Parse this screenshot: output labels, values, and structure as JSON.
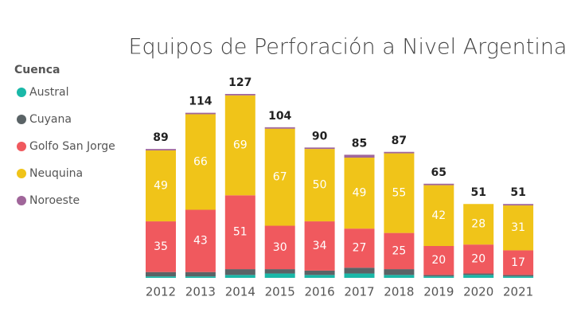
{
  "chart_data": {
    "type": "stacked-bar",
    "title": "Equipos de Perforación a Nivel Argentina",
    "legend_title": "Cuenca",
    "categories": [
      "2012",
      "2013",
      "2014",
      "2015",
      "2016",
      "2017",
      "2018",
      "2019",
      "2020",
      "2021"
    ],
    "totals": [
      89,
      114,
      127,
      104,
      90,
      85,
      87,
      65,
      51,
      51
    ],
    "series": [
      {
        "name": "Austral",
        "color": "#1ab8a8",
        "show_labels": false,
        "values": [
          1,
          1,
          2,
          3,
          2,
          3,
          2,
          1,
          2,
          1
        ]
      },
      {
        "name": "Cuyana",
        "color": "#5a6366",
        "show_labels": false,
        "values": [
          3,
          3,
          4,
          3,
          3,
          4,
          4,
          1,
          1,
          1
        ]
      },
      {
        "name": "Golfo San Jorge",
        "color": "#f0595e",
        "show_labels": true,
        "values": [
          35,
          43,
          51,
          30,
          34,
          27,
          25,
          20,
          20,
          17
        ]
      },
      {
        "name": "Neuquina",
        "color": "#f0c419",
        "show_labels": true,
        "values": [
          49,
          66,
          69,
          67,
          50,
          49,
          55,
          42,
          28,
          31
        ]
      },
      {
        "name": "Noroeste",
        "color": "#a0669a",
        "show_labels": false,
        "values": [
          1,
          1,
          1,
          1,
          1,
          2,
          1,
          1,
          0,
          1
        ]
      }
    ]
  }
}
